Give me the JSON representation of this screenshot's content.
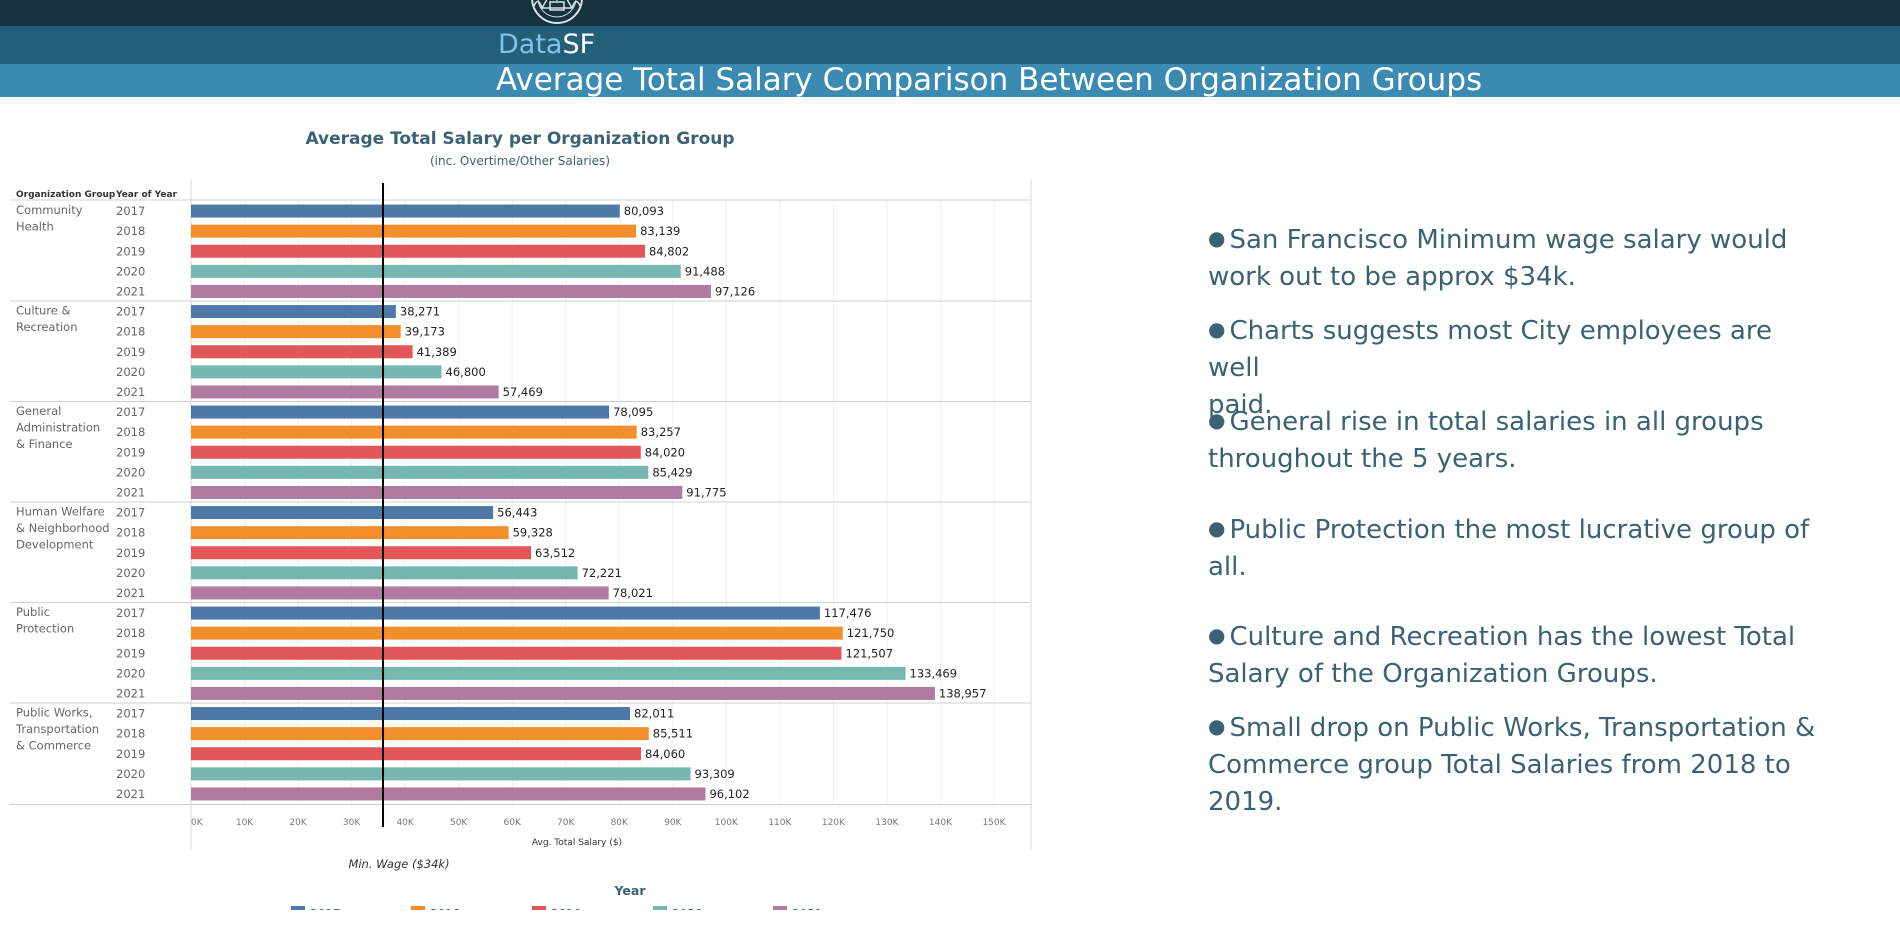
{
  "header": {
    "brand_part1": "Data",
    "brand_part2": "SF",
    "page_title": "Average Total Salary Comparison Between Organization Groups",
    "colors": {
      "top_bar": "#17323f",
      "brand_bar": "#255e79",
      "title_bar": "#3a8ab1",
      "brand_accent": "#7cc4ea"
    }
  },
  "chart_data": {
    "type": "bar",
    "orientation": "horizontal",
    "title": "Average Total Salary per Organization Group",
    "subtitle": "(inc. Overtime/Other Salaries)",
    "row_headers": [
      "Organization Group",
      "Year of Year"
    ],
    "xlabel": "Avg. Total Salary ($)",
    "xlim": [
      0,
      155000
    ],
    "x_ticks": [
      "0K",
      "10K",
      "20K",
      "30K",
      "40K",
      "50K",
      "60K",
      "70K",
      "80K",
      "90K",
      "100K",
      "110K",
      "120K",
      "130K",
      "140K",
      "150K"
    ],
    "grid": true,
    "reference_line": {
      "value": 34000,
      "label": "Min. Wage ($34k)"
    },
    "legend_title": "Year",
    "legend_position": "bottom",
    "years": [
      "2017",
      "2018",
      "2019",
      "2020",
      "2021"
    ],
    "colors": [
      "#4e79a7",
      "#f28e2b",
      "#e15759",
      "#76b7b2",
      "#b07aa1"
    ],
    "groups": [
      {
        "name": [
          "Community",
          "Health"
        ],
        "values": [
          80093,
          83139,
          84802,
          91488,
          97126
        ],
        "labels": [
          "80,093",
          "83,139",
          "84,802",
          "91,488",
          "97,126"
        ]
      },
      {
        "name": [
          "Culture &",
          "Recreation"
        ],
        "values": [
          38271,
          39173,
          41389,
          46800,
          57469
        ],
        "labels": [
          "38,271",
          "39,173",
          "41,389",
          "46,800",
          "57,469"
        ]
      },
      {
        "name": [
          "General",
          "Administration",
          "& Finance"
        ],
        "values": [
          78095,
          83257,
          84020,
          85429,
          91775
        ],
        "labels": [
          "78,095",
          "83,257",
          "84,020",
          "85,429",
          "91,775"
        ]
      },
      {
        "name": [
          "Human Welfare",
          "& Neighborhood",
          "Development"
        ],
        "values": [
          56443,
          59328,
          63512,
          72221,
          78021
        ],
        "labels": [
          "56,443",
          "59,328",
          "63,512",
          "72,221",
          "78,021"
        ]
      },
      {
        "name": [
          "Public",
          "Protection"
        ],
        "values": [
          117476,
          121750,
          121507,
          133469,
          138957
        ],
        "labels": [
          "117,476",
          "121,750",
          "121,507",
          "133,469",
          "138,957"
        ]
      },
      {
        "name": [
          "Public Works,",
          "Transportation",
          "& Commerce"
        ],
        "values": [
          82011,
          85511,
          84060,
          93309,
          96102
        ],
        "labels": [
          "82,011",
          "85,511",
          "84,060",
          "93,309",
          "96,102"
        ]
      }
    ]
  },
  "bullets": [
    {
      "lines": [
        "San Francisco Minimum wage salary would",
        "work out to be approx $34k."
      ]
    },
    {
      "lines": [
        "Charts suggests most City employees are well",
        "paid."
      ]
    },
    {
      "lines": [
        "General rise in total salaries in all groups",
        "throughout the 5 years."
      ]
    },
    {
      "lines": [
        "Public Protection the most lucrative group of",
        "all."
      ]
    },
    {
      "lines": [
        "Culture and Recreation has the lowest Total",
        "Salary of the Organization Groups."
      ]
    },
    {
      "lines": [
        "Small drop on Public Works, Transportation &",
        "Commerce group Total Salaries from 2018 to",
        "2019."
      ]
    }
  ]
}
